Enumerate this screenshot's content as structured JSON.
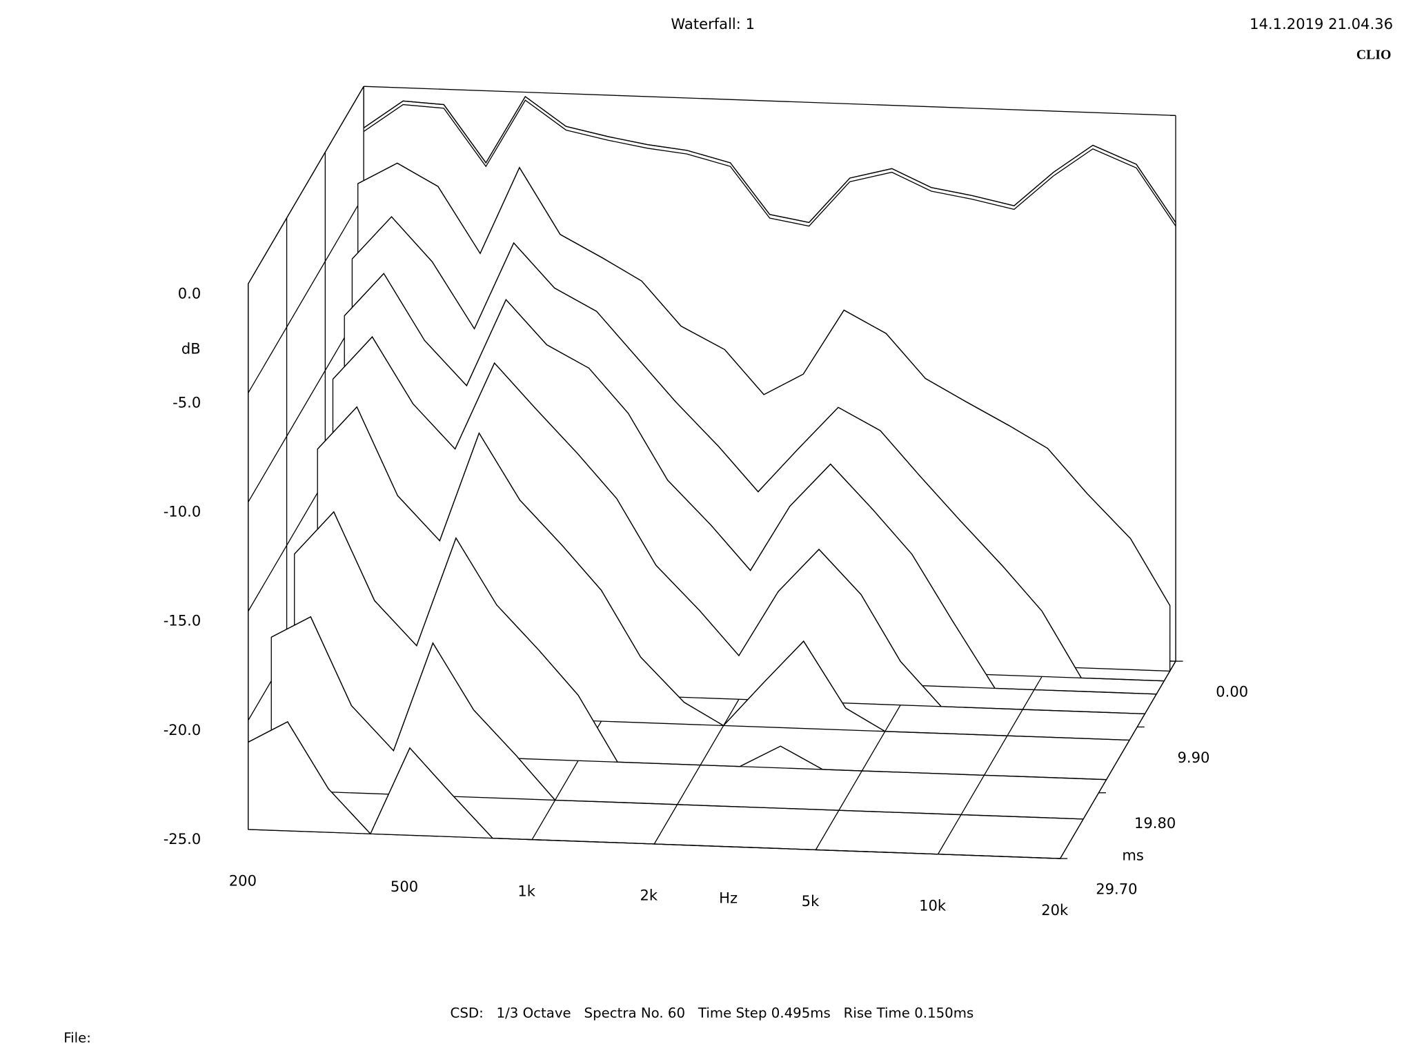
{
  "chart_data": {
    "type": "waterfall",
    "title": "Waterfall: 1",
    "timestamp": "14.1.2019 21.04.36",
    "brand": "CLIO",
    "xlabel": "Hz",
    "ylabel": "dB",
    "zlabel": "ms",
    "footer": "CSD:   1/3 Octave   Spectra No. 60   Time Step 0.495ms   Rise Time 0.150ms",
    "file_label": "File:",
    "log_x": true,
    "xlim": [
      200,
      20000
    ],
    "xticks": [
      200,
      500,
      {
        "value": 1000,
        "label": "1k"
      },
      {
        "value": 2000,
        "label": "2k"
      },
      {
        "value": 5000,
        "label": "5k"
      },
      {
        "value": 10000,
        "label": "10k"
      },
      {
        "value": 20000,
        "label": "20k"
      }
    ],
    "ylim": [
      -25,
      0
    ],
    "yticks": [
      {
        "value": 0,
        "label": "0.0"
      },
      {
        "value": -5,
        "label": "-5.0"
      },
      {
        "value": -10,
        "label": "-10.0"
      },
      {
        "value": -15,
        "label": "-15.0"
      },
      {
        "value": -20,
        "label": "-20.0"
      },
      {
        "value": -25,
        "label": "-25.0"
      }
    ],
    "zlim": [
      0,
      29.7
    ],
    "zticks": [
      {
        "value": 0,
        "label": "0.00"
      },
      {
        "value": 9.9,
        "label": "9.90"
      },
      {
        "value": 19.8,
        "label": "19.80"
      },
      {
        "value": 29.7,
        "label": "29.70"
      }
    ],
    "x": [
      200,
      250,
      315,
      400,
      500,
      630,
      800,
      1000,
      1250,
      1600,
      2000,
      2500,
      3150,
      4000,
      5000,
      6300,
      8000,
      10000,
      12500,
      16000,
      20000
    ],
    "slices": [
      {
        "time": 0,
        "values": [
          -1.9,
          -0.6,
          -0.7,
          -3.3,
          -0.2,
          -1.5,
          -1.9,
          -2.2,
          -2.4,
          -2.9,
          -5.2,
          -5.5,
          -3.4,
          -2.9,
          -3.7,
          -4.0,
          -4.4,
          -2.8,
          -1.5,
          -2.3,
          -4.9
        ]
      },
      {
        "time": 1.485,
        "values": [
          -4,
          -3,
          -4,
          -7,
          -3,
          -6,
          -7,
          -8,
          -10,
          -11,
          -13,
          -12,
          -9,
          -10,
          -12,
          -13,
          -14,
          -15,
          -17,
          -19,
          -22
        ]
      },
      {
        "time": 2.97,
        "values": [
          -7,
          -5,
          -7,
          -10,
          -6,
          -8,
          -9,
          -11,
          -13,
          -15,
          -17,
          -15,
          -13,
          -14,
          -16,
          -18,
          -20,
          -22,
          -25,
          -25,
          -25
        ]
      },
      {
        "time": 4.95,
        "values": [
          -9,
          -7,
          -10,
          -12,
          -8,
          -10,
          -11,
          -13,
          -16,
          -18,
          -20,
          -17,
          -15,
          -17,
          -19,
          -22,
          -25,
          -25,
          -25,
          -25,
          -25
        ]
      },
      {
        "time": 7.92,
        "values": [
          -11,
          -9,
          -12,
          -14,
          -10,
          -12,
          -14,
          -16,
          -19,
          -21,
          -23,
          -20,
          -18,
          -20,
          -23,
          -25,
          -25,
          -25,
          -25,
          -25,
          -25
        ]
      },
      {
        "time": 11.88,
        "values": [
          -13,
          -11,
          -15,
          -17,
          -12,
          -15,
          -17,
          -19,
          -22,
          -24,
          -25,
          -23,
          -21,
          -24,
          -25,
          -25,
          -25,
          -25,
          -25,
          -25,
          -25
        ]
      },
      {
        "time": 17.82,
        "values": [
          -16,
          -14,
          -18,
          -20,
          -15,
          -18,
          -20,
          -22,
          -25,
          -25,
          -25,
          -25,
          -24,
          -25,
          -25,
          -25,
          -25,
          -25,
          -25,
          -25,
          -25
        ]
      },
      {
        "time": 23.76,
        "values": [
          -18,
          -17,
          -21,
          -23,
          -18,
          -21,
          -23,
          -25,
          -25,
          -25,
          -25,
          -25,
          -25,
          -25,
          -25,
          -25,
          -25,
          -25,
          -25,
          -25,
          -25
        ]
      },
      {
        "time": 29.7,
        "values": [
          -21,
          -20,
          -23,
          -25,
          -21,
          -23,
          -25,
          -25,
          -25,
          -25,
          -25,
          -25,
          -25,
          -25,
          -25,
          -25,
          -25,
          -25,
          -25,
          -25,
          -25
        ]
      }
    ]
  }
}
